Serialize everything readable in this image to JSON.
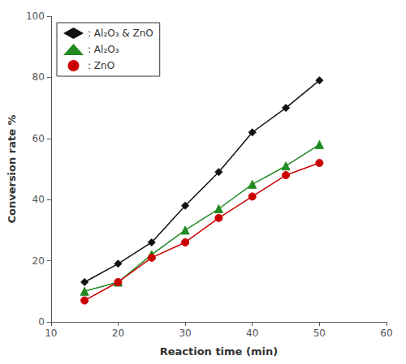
{
  "chart_data": {
    "type": "line",
    "xlabel": "Reaction time (min)",
    "ylabel": "Conversion rate %",
    "x": [
      15,
      20,
      25,
      30,
      35,
      40,
      45,
      50
    ],
    "series": [
      {
        "name": ": Al₂O₃ & ZnO",
        "color": "#111111",
        "marker": "diamond",
        "values": [
          13,
          19,
          26,
          38,
          49,
          62,
          70,
          79
        ]
      },
      {
        "name": ": Al₂O₃",
        "color": "#228B22",
        "marker": "triangle",
        "values": [
          10,
          13,
          22,
          30,
          37,
          45,
          51,
          58
        ]
      },
      {
        "name": ": ZnO",
        "color": "#CC0000",
        "marker": "circle",
        "values": [
          7,
          13,
          21,
          26,
          34,
          41,
          48,
          52
        ]
      }
    ],
    "xlim": [
      10,
      60
    ],
    "xticks": [
      10,
      20,
      30,
      40,
      50,
      60
    ],
    "ylim": [
      0,
      100
    ],
    "yticks": [
      0,
      20,
      40,
      60,
      80,
      100
    ],
    "grid": false,
    "legend": "upper left"
  }
}
